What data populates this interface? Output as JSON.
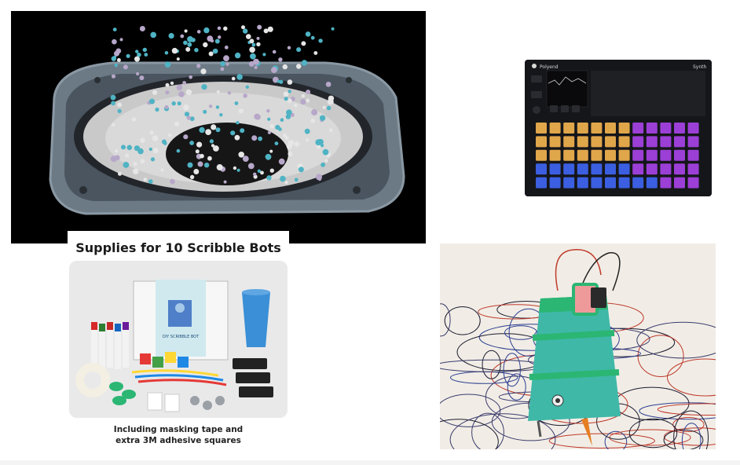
{
  "gallery": {
    "tiles": [
      {
        "name": "speaker-beads-photo"
      },
      {
        "name": "polyend-synth-photo"
      },
      {
        "name": "scribble-bots-supplies"
      },
      {
        "name": "scribble-bot-robot-photo"
      }
    ]
  },
  "synth": {
    "brand": "Polyend",
    "model": "Synth"
  },
  "supplies": {
    "title": "Supplies for 10 Scribble Bots",
    "box_label": "DIY SCRIBBLE BOT",
    "caption_line1": "Including masking tape and",
    "caption_line2": "extra 3M adhesive squares"
  },
  "colors": {
    "speaker_rim": "#6c7a86",
    "pad_amber": "#e0a64a",
    "pad_purple": "#9b3fd6",
    "pad_blue": "#3b5fe0",
    "tape_green": "#2bb673",
    "cup_blue": "#3a8fd6"
  }
}
